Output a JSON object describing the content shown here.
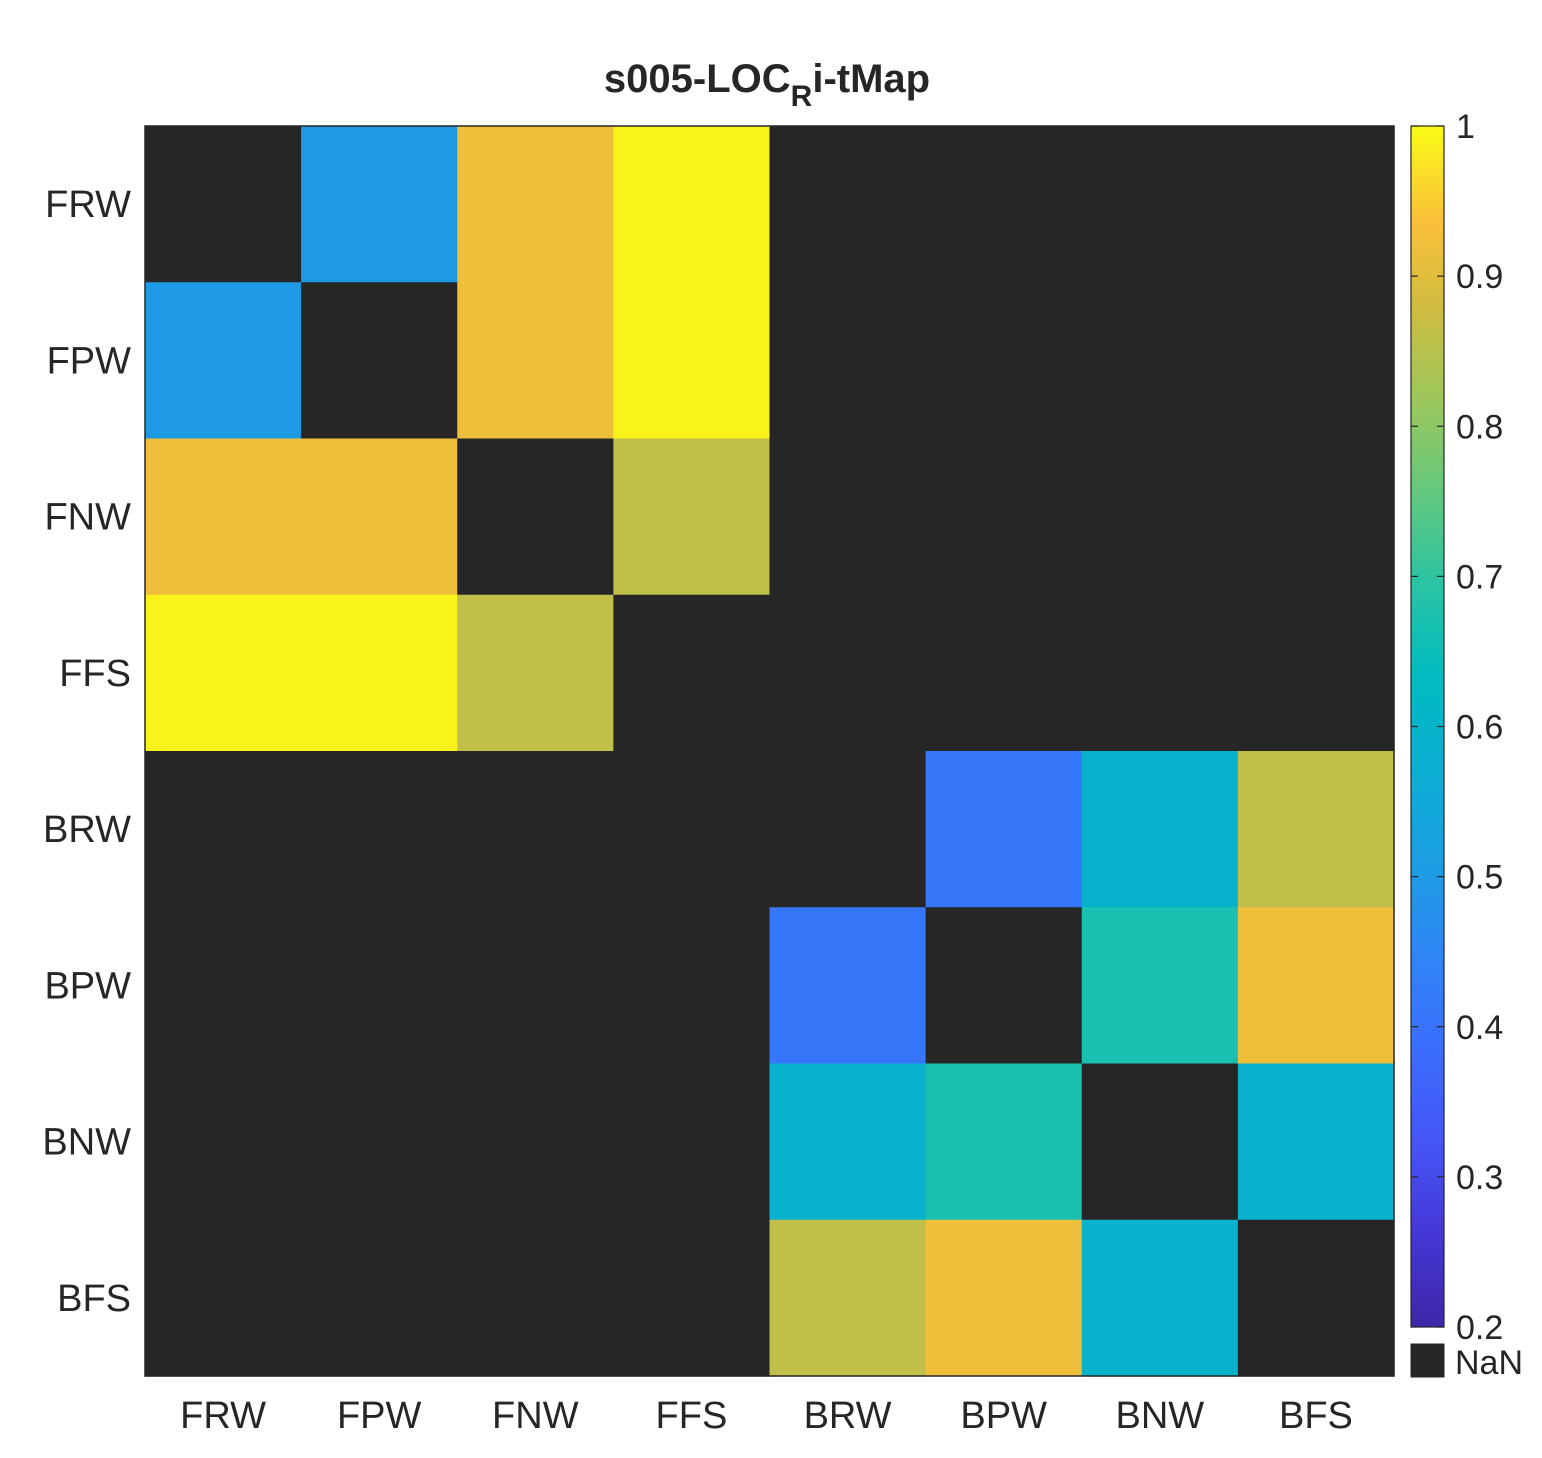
{
  "chart_data": {
    "type": "heatmap",
    "title": {
      "main": "s005-LOC",
      "subscript": "R",
      "suffix": "i-tMap"
    },
    "row_labels": [
      "FRW",
      "FPW",
      "FNW",
      "FFS",
      "BRW",
      "BPW",
      "BNW",
      "BFS"
    ],
    "col_labels": [
      "FRW",
      "FPW",
      "FNW",
      "FFS",
      "BRW",
      "BPW",
      "BNW",
      "BFS"
    ],
    "values": [
      [
        null,
        0.5,
        0.92,
        0.99,
        null,
        null,
        null,
        null
      ],
      [
        0.5,
        null,
        0.92,
        0.99,
        null,
        null,
        null,
        null
      ],
      [
        0.92,
        0.92,
        null,
        0.86,
        null,
        null,
        null,
        null
      ],
      [
        0.99,
        0.99,
        0.86,
        null,
        null,
        null,
        null,
        null
      ],
      [
        null,
        null,
        null,
        null,
        null,
        0.41,
        0.59,
        0.86
      ],
      [
        null,
        null,
        null,
        null,
        0.41,
        null,
        0.67,
        0.92
      ],
      [
        null,
        null,
        null,
        null,
        0.59,
        0.67,
        null,
        0.59
      ],
      [
        null,
        null,
        null,
        null,
        0.86,
        0.92,
        0.59,
        null
      ]
    ],
    "colorbar": {
      "min": 0.2,
      "max": 1,
      "ticks": [
        0.2,
        0.3,
        0.4,
        0.5,
        0.6,
        0.7,
        0.8,
        0.9,
        1
      ],
      "tick_labels": [
        "0.2",
        "0.3",
        "0.4",
        "0.5",
        "0.6",
        "0.7",
        "0.8",
        "0.9",
        "1"
      ],
      "colormap": "parula",
      "nan_label": "NaN",
      "nan_color": "#262626"
    }
  }
}
